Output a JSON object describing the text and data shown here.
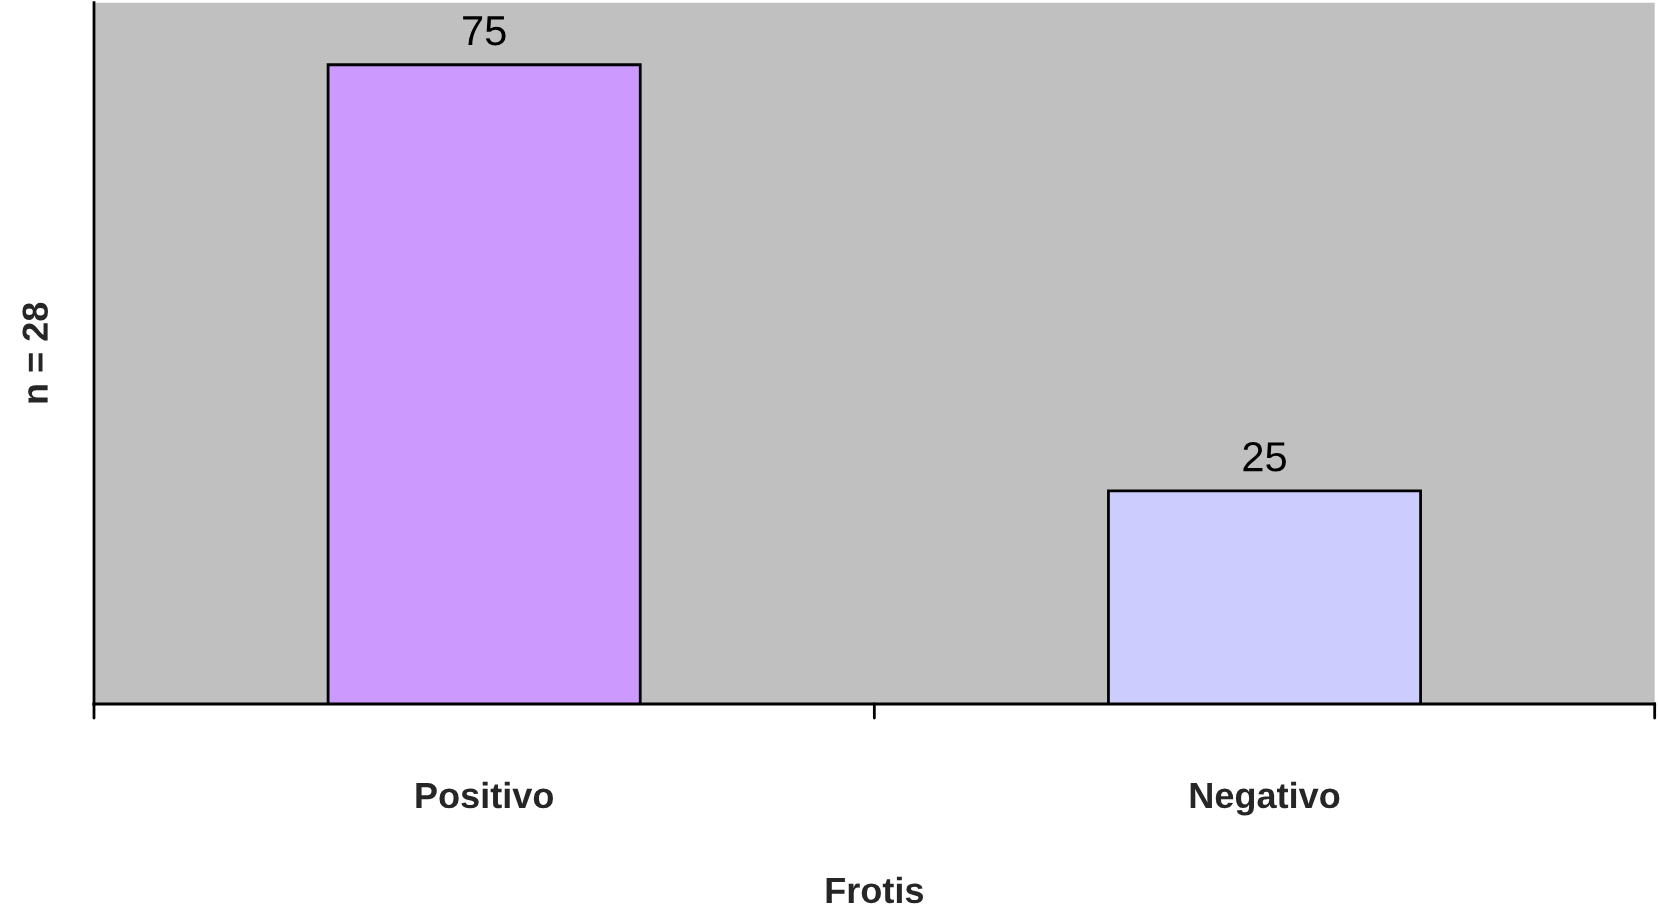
{
  "chart_data": {
    "type": "bar",
    "xlabel": "Frotis",
    "ylabel": "n = 28",
    "categories": [
      "Positivo",
      "Negativo"
    ],
    "values": [
      75,
      25
    ],
    "colors": [
      "#cc99ff",
      "#ccccff"
    ],
    "data_labels": true,
    "grid": false,
    "legend": false
  }
}
